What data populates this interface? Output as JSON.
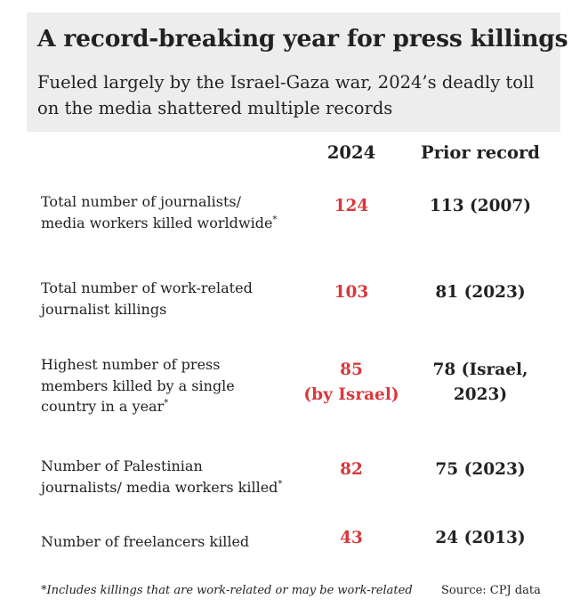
{
  "header": {
    "title": "A record-breaking year for press killings",
    "subtitle": "Fueled largely by the Israel-Gaza war, 2024’s deadly toll on the media shattered multiple records"
  },
  "columns": {
    "current": "2024",
    "prior": "Prior record"
  },
  "rows": [
    {
      "label_line1": "Total number of journalists/",
      "label_line2": "media workers killed worldwide",
      "asterisk": "*",
      "value": "124",
      "prior": "113 (2007)"
    },
    {
      "label_line1": "Total number of work-related",
      "label_line2": "journalist killings",
      "value": "103",
      "prior": "81 (2023)"
    },
    {
      "label_line1": "Highest number of press",
      "label_line2": "members killed by a single",
      "label_line3": "country in a year",
      "asterisk": "*",
      "value": "85",
      "value_line2": "(by Israel)",
      "prior": "78 (Israel,",
      "prior_line2": "2023)"
    },
    {
      "label_line1": "Number of Palestinian",
      "label_line2": "journalists/ media workers killed",
      "asterisk": "*",
      "value": "82",
      "prior": "75 (2023)"
    },
    {
      "label_line1": "Number of freelancers killed",
      "value": "43",
      "prior": "24 (2013)"
    }
  ],
  "footer": {
    "footnote": "*Includes killings that are work-related or may be work-related",
    "source": "Source: CPJ data"
  },
  "colors": {
    "highlight": "#d9383c",
    "header_bg": "#ededed",
    "text": "#222222"
  }
}
